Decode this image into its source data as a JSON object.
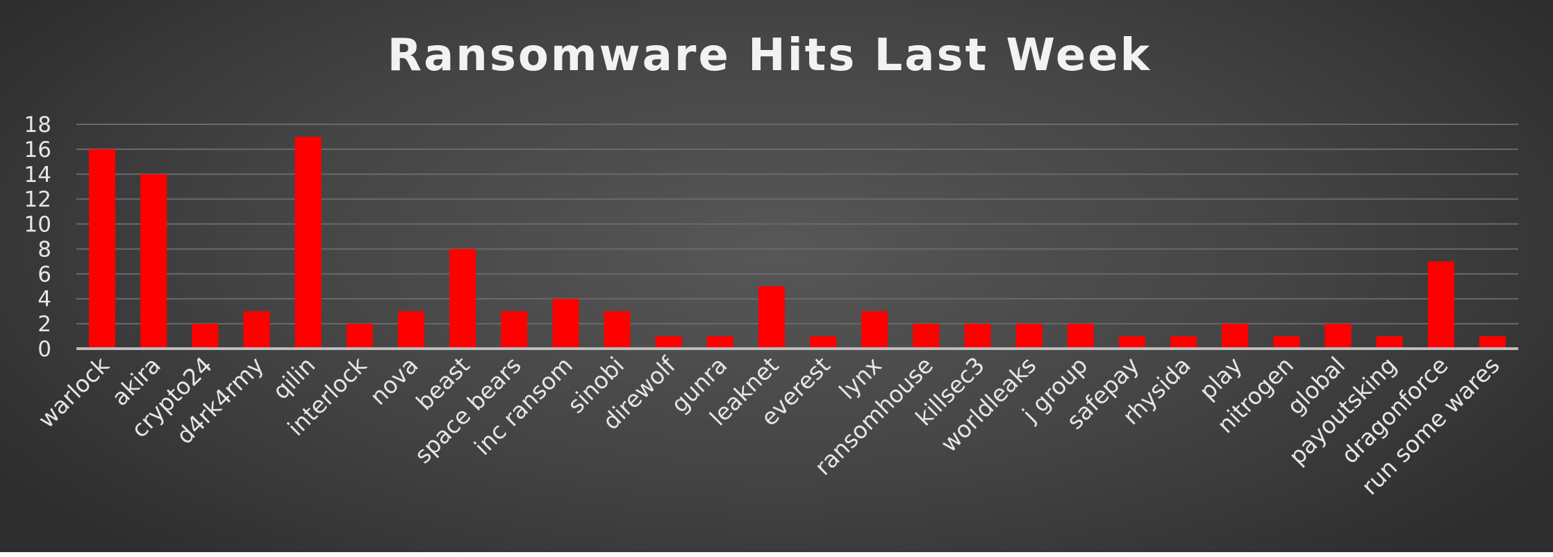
{
  "chart_data": {
    "type": "bar",
    "title": "Ransomware Hits Last Week",
    "xlabel": "",
    "ylabel": "",
    "ylim": [
      0,
      18
    ],
    "yticks": [
      0,
      2,
      4,
      6,
      8,
      10,
      12,
      14,
      16,
      18
    ],
    "grid": true,
    "legend": "none",
    "bar_color": "#ff0000",
    "categories": [
      "warlock",
      "akira",
      "crypto24",
      "d4rk4rmy",
      "qilin",
      "interlock",
      "nova",
      "beast",
      "space bears",
      "inc ransom",
      "sinobi",
      "direwolf",
      "gunra",
      "leaknet",
      "everest",
      "lynx",
      "ransomhouse",
      "killsec3",
      "worldleaks",
      "j group",
      "safepay",
      "rhysida",
      "play",
      "nitrogen",
      "global",
      "payoutsking",
      "dragonforce",
      "run some wares"
    ],
    "values": [
      16,
      14,
      2,
      3,
      17,
      2,
      3,
      8,
      3,
      4,
      3,
      1,
      1,
      5,
      1,
      3,
      2,
      2,
      2,
      2,
      1,
      1,
      2,
      1,
      2,
      1,
      7,
      1
    ]
  }
}
